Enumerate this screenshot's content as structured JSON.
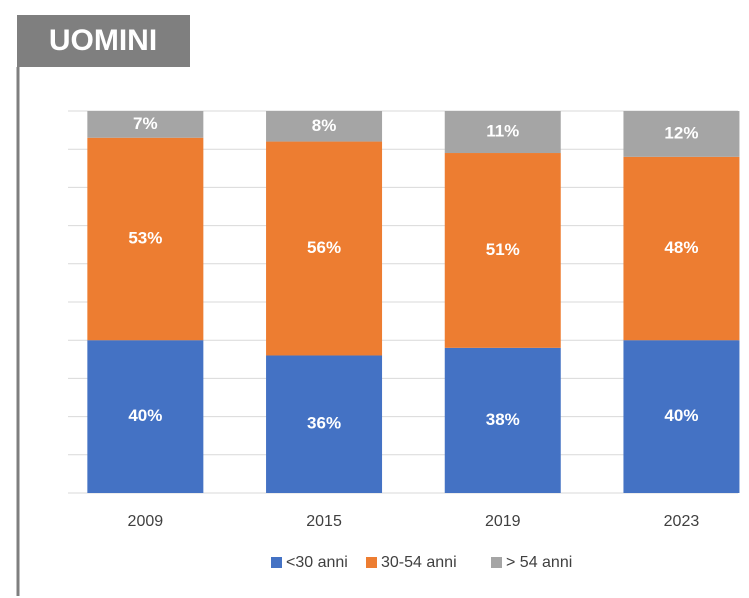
{
  "chart_data": {
    "type": "stacked_bar",
    "title": "UOMINI",
    "categories": [
      "2009",
      "2015",
      "2019",
      "2023"
    ],
    "series": [
      {
        "name": "<30 anni",
        "color": "#4472c4",
        "values": [
          40,
          36,
          38,
          40
        ],
        "value_labels": [
          "40%",
          "36%",
          "38%",
          "40%"
        ]
      },
      {
        "name": "30-54 anni",
        "color": "#ed7d31",
        "values": [
          53,
          56,
          51,
          48
        ],
        "value_labels": [
          "53%",
          "56%",
          "51%",
          "48%"
        ]
      },
      {
        "name": "> 54 anni",
        "color": "#a5a5a5",
        "values": [
          7,
          8,
          11,
          12
        ],
        "value_labels": [
          "7%",
          "8%",
          "11%",
          "12%"
        ]
      }
    ],
    "ylim": [
      0,
      100
    ],
    "yticks": [
      0,
      10,
      20,
      30,
      40,
      50,
      60,
      70,
      80,
      90,
      100
    ],
    "grid": true,
    "legend": "bottom"
  }
}
